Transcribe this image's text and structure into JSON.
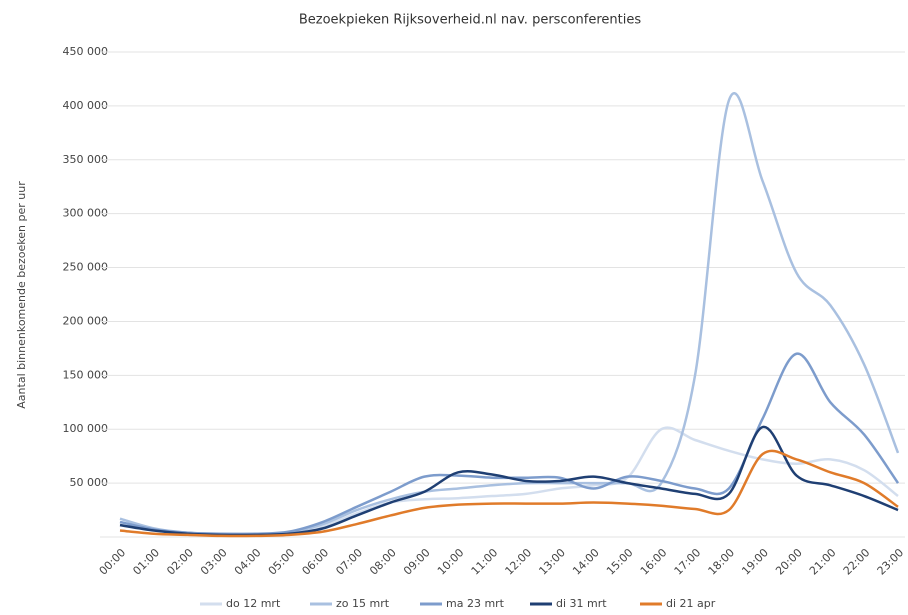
{
  "chart_data": {
    "type": "line",
    "title": "Bezoekpieken Rijksoverheid.nl nav. persconferenties",
    "y_label": "Aantal binnenkomende bezoeken per uur",
    "categories": [
      "00:00",
      "01:00",
      "02:00",
      "03:00",
      "04:00",
      "05:00",
      "06:00",
      "07:00",
      "08:00",
      "09:00",
      "10:00",
      "11:00",
      "12:00",
      "13:00",
      "14:00",
      "15:00",
      "16:00",
      "17:00",
      "18:00",
      "19:00",
      "20:00",
      "21:00",
      "22:00",
      "23:00"
    ],
    "series": [
      {
        "name": "do 12 mrt",
        "color": "#d3deee",
        "values": [
          13000,
          7000,
          4000,
          3000,
          3000,
          4000,
          10000,
          22000,
          32000,
          35000,
          36000,
          38000,
          40000,
          45000,
          48000,
          55000,
          100000,
          90000,
          80000,
          72000,
          68000,
          72000,
          62000,
          38000
        ]
      },
      {
        "name": "zo 15 mrt",
        "color": "#a9c0e0",
        "values": [
          17000,
          8000,
          4000,
          3000,
          3000,
          4000,
          12000,
          25000,
          35000,
          42000,
          45000,
          48000,
          50000,
          50000,
          50000,
          50000,
          50000,
          150000,
          405000,
          330000,
          245000,
          215000,
          160000,
          78000
        ]
      },
      {
        "name": "ma 23 mrt",
        "color": "#7d9ccc",
        "values": [
          14000,
          7000,
          4000,
          3000,
          3000,
          5000,
          14000,
          28000,
          42000,
          56000,
          57000,
          55000,
          55000,
          55000,
          45000,
          56000,
          52000,
          45000,
          45000,
          110000,
          170000,
          125000,
          95000,
          50000
        ]
      },
      {
        "name": "di 31 mrt",
        "color": "#1f3f73",
        "values": [
          11000,
          6000,
          3000,
          2000,
          2000,
          3000,
          8000,
          20000,
          32000,
          42000,
          60000,
          58000,
          52000,
          52000,
          56000,
          50000,
          45000,
          40000,
          40000,
          102000,
          57000,
          48000,
          38000,
          25000
        ]
      },
      {
        "name": "di 21 apr",
        "color": "#e07b2a",
        "values": [
          6000,
          3000,
          2000,
          1000,
          1000,
          2000,
          5000,
          12000,
          20000,
          27000,
          30000,
          31000,
          31000,
          31000,
          32000,
          31000,
          29000,
          26000,
          25000,
          77000,
          72000,
          60000,
          50000,
          28000
        ]
      }
    ],
    "ylim": [
      0,
      450000
    ],
    "yticks": [
      {
        "value": 0,
        "label": "-"
      },
      {
        "value": 50000,
        "label": "50 000"
      },
      {
        "value": 100000,
        "label": "100 000"
      },
      {
        "value": 150000,
        "label": "150 000"
      },
      {
        "value": 200000,
        "label": "200 000"
      },
      {
        "value": 250000,
        "label": "250 000"
      },
      {
        "value": 300000,
        "label": "300 000"
      },
      {
        "value": 350000,
        "label": "350 000"
      },
      {
        "value": 400000,
        "label": "400 000"
      },
      {
        "value": 450000,
        "label": "450 000"
      }
    ],
    "grid": true
  }
}
